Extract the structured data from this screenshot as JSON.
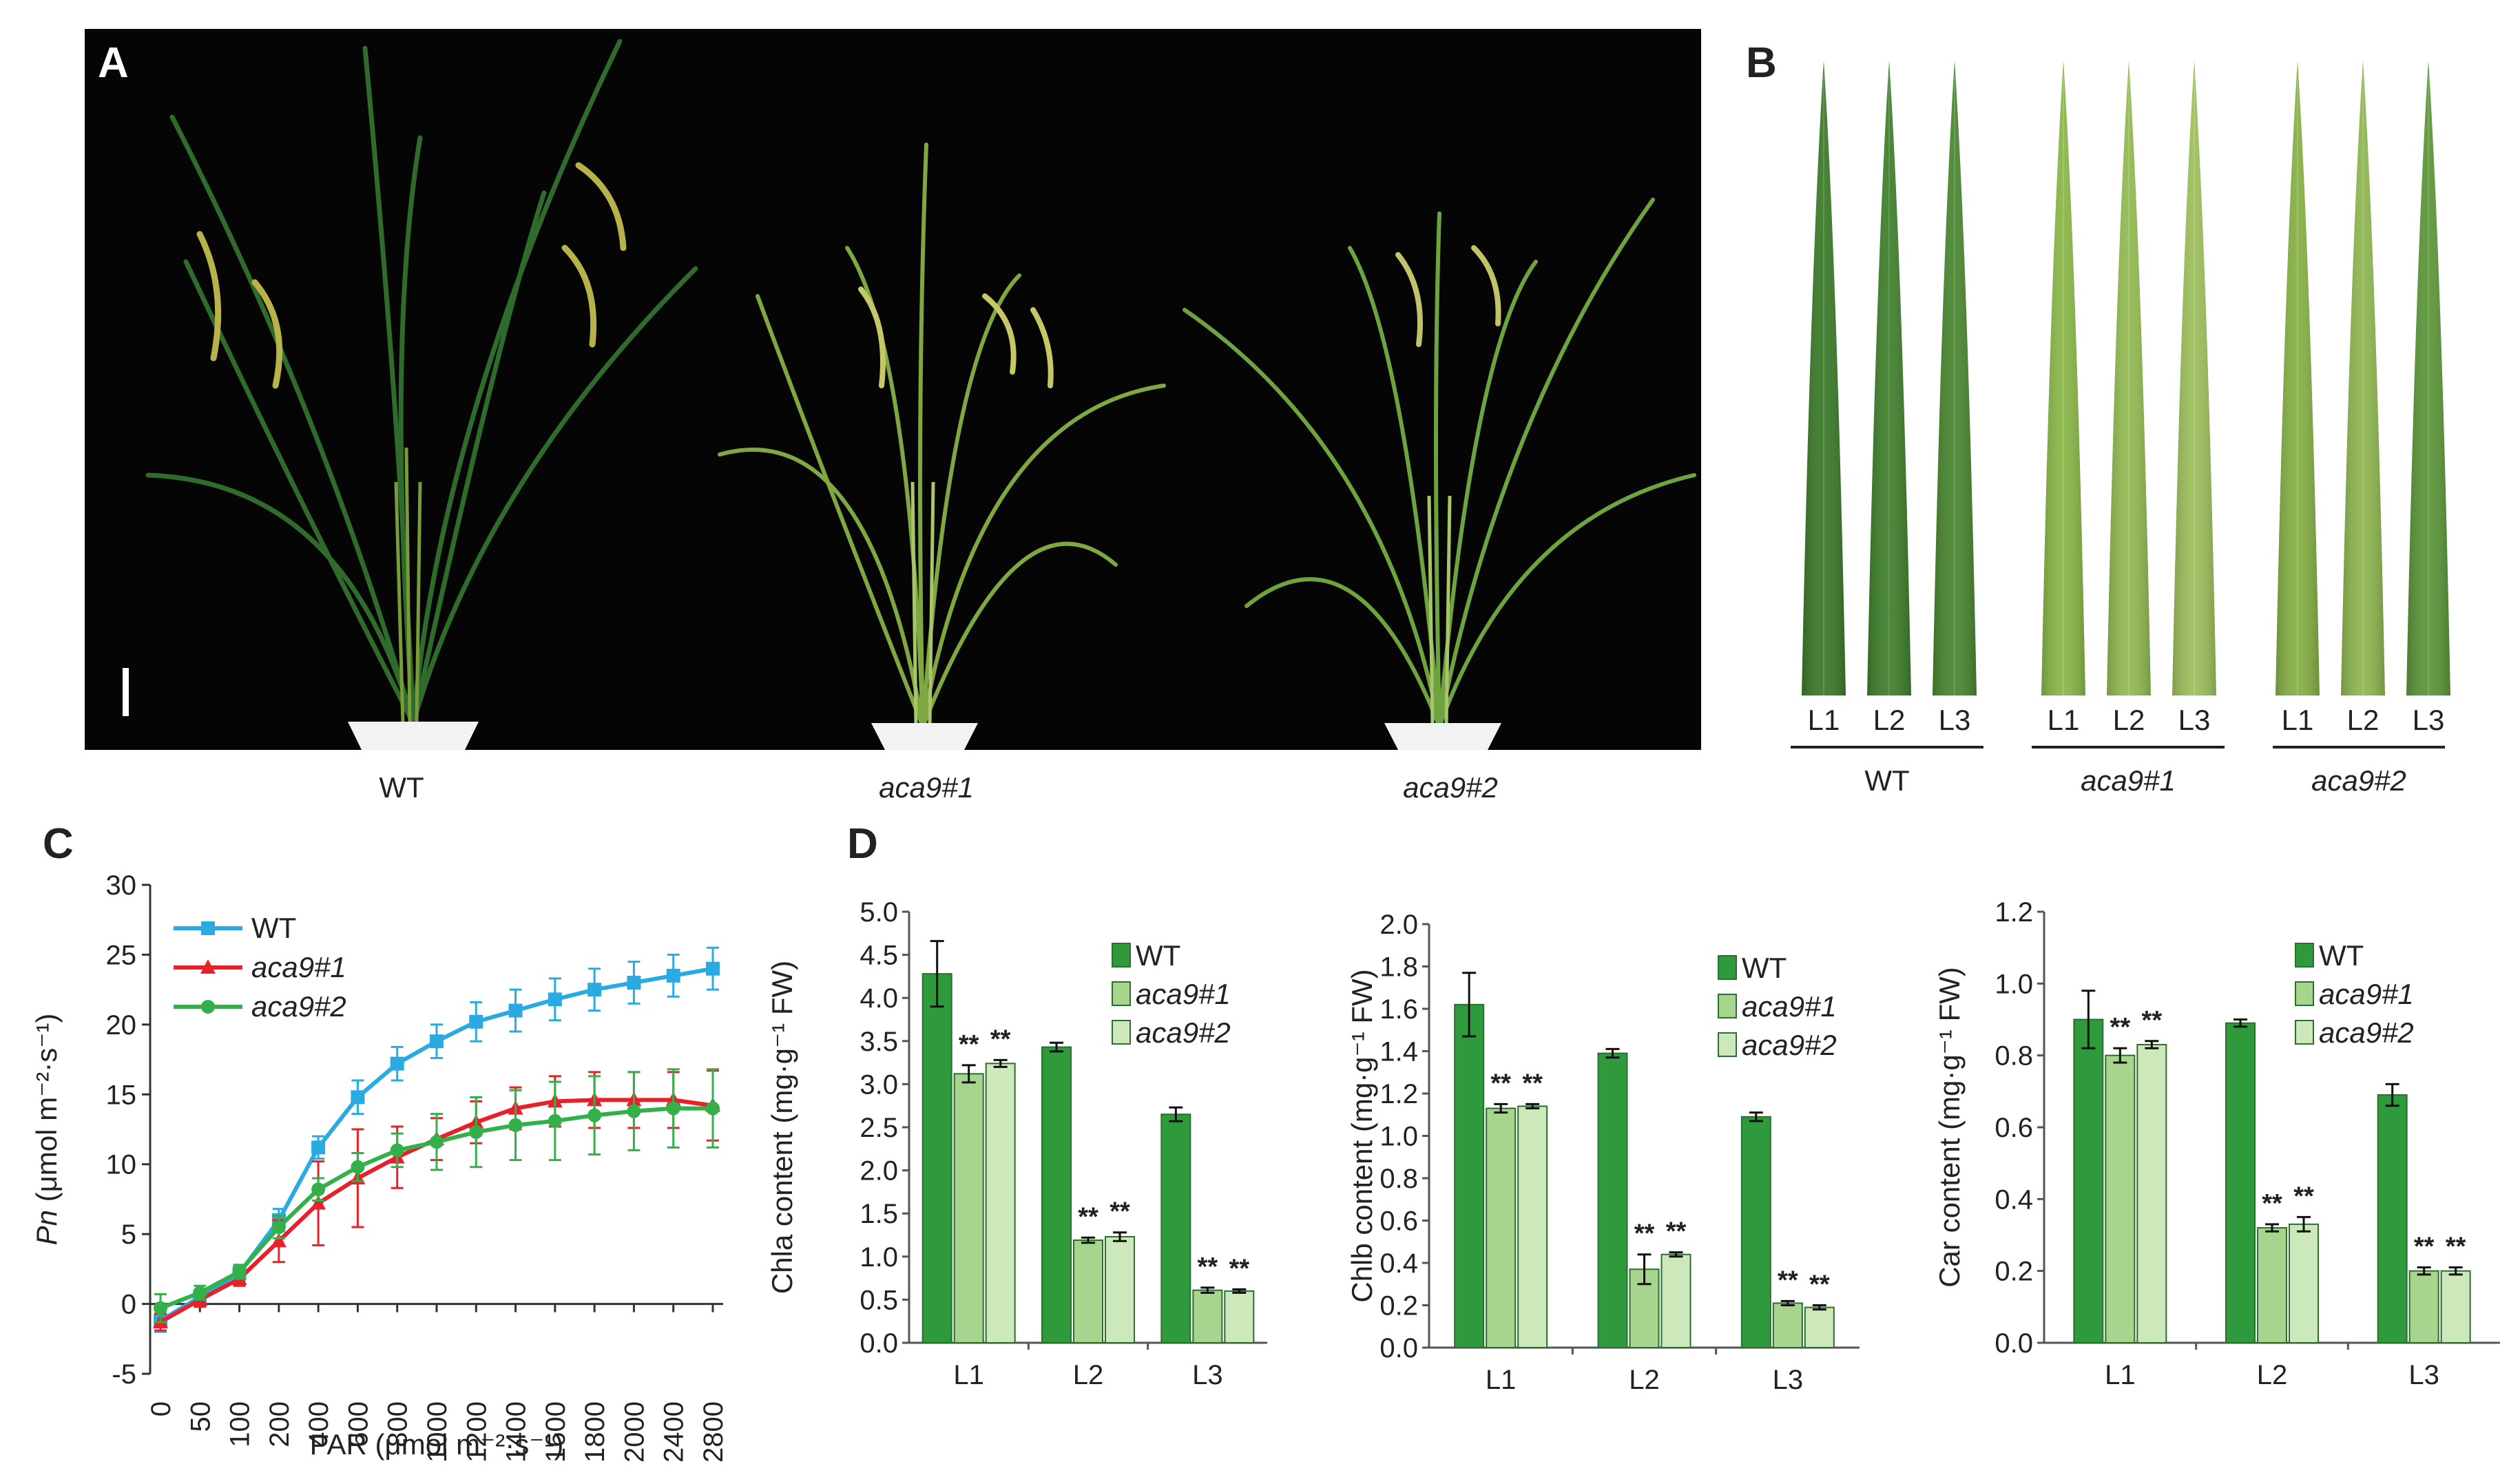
{
  "panels": {
    "A": {
      "letter": "A",
      "plants": [
        "WT",
        "aca9#1",
        "aca9#2"
      ],
      "labels": [
        "WT",
        "aca9#1",
        "aca9#2"
      ]
    },
    "B": {
      "letter": "B",
      "leaf_labels": [
        "L1",
        "L2",
        "L3"
      ],
      "groups": [
        "WT",
        "aca9#1",
        "aca9#2"
      ],
      "colors": {
        "WT": [
          "#3b7a2a",
          "#3f7f2c",
          "#4a8630"
        ],
        "aca9#1": [
          "#8ab648",
          "#93ba52",
          "#9dbf5c"
        ],
        "aca9#2": [
          "#86b045",
          "#8fb650",
          "#5c963a"
        ]
      }
    },
    "C": {
      "letter": "C"
    },
    "D": {
      "letter": "D"
    }
  },
  "chart_data": [
    {
      "id": "C",
      "type": "line",
      "title": "",
      "xlabel": "PAR (μmol m⁻²·s⁻¹)",
      "ylabel_italic": "Pn",
      "ylabel_rest": " (μmol m⁻²·s⁻¹)",
      "x": [
        "0",
        "50",
        "100",
        "200",
        "400",
        "600",
        "800",
        "1000",
        "1200",
        "1400",
        "1600",
        "1800",
        "2000",
        "2400",
        "2800"
      ],
      "ylim": [
        -5,
        30
      ],
      "yticks": [
        "-5",
        "0",
        "5",
        "10",
        "15",
        "20",
        "25",
        "30"
      ],
      "series": [
        {
          "name": "WT",
          "color": "#29abe2",
          "marker": "square",
          "values": [
            -1.2,
            0.5,
            2.2,
            6.0,
            11.2,
            14.8,
            17.2,
            18.8,
            20.2,
            21.0,
            21.8,
            22.5,
            23.0,
            23.5,
            24.0
          ],
          "errors": [
            0.8,
            0.5,
            0.5,
            0.8,
            0.8,
            1.2,
            1.2,
            1.2,
            1.4,
            1.5,
            1.5,
            1.5,
            1.5,
            1.5,
            1.5
          ]
        },
        {
          "name": "aca9#1",
          "color": "#e8202a",
          "marker": "triangle",
          "values": [
            -1.3,
            0.3,
            1.8,
            4.5,
            7.2,
            9.0,
            10.5,
            11.8,
            13.0,
            14.0,
            14.5,
            14.6,
            14.6,
            14.6,
            14.2
          ],
          "errors": [
            0.6,
            0.5,
            0.5,
            1.5,
            3.0,
            3.5,
            2.2,
            1.5,
            1.5,
            1.5,
            1.8,
            2.0,
            2.0,
            2.0,
            2.5
          ]
        },
        {
          "name": "aca9#2",
          "color": "#33b04a",
          "marker": "circle",
          "values": [
            -0.3,
            0.8,
            2.3,
            5.5,
            8.2,
            9.8,
            11.0,
            11.6,
            12.3,
            12.8,
            13.1,
            13.5,
            13.8,
            14.0,
            14.0
          ],
          "errors": [
            1.0,
            0.5,
            0.5,
            0.8,
            0.8,
            1.0,
            1.2,
            2.0,
            2.5,
            2.5,
            2.8,
            2.8,
            2.8,
            2.8,
            2.8
          ]
        }
      ],
      "legend": [
        "WT",
        "aca9#1",
        "aca9#2"
      ]
    },
    {
      "id": "D1",
      "type": "bar",
      "ylabel": "Chla content (mg·g⁻¹ FW)",
      "categories": [
        "L1",
        "L2",
        "L3"
      ],
      "ylim": [
        0,
        5
      ],
      "yticks": [
        "0.0",
        "0.5",
        "1.0",
        "1.5",
        "2.0",
        "2.5",
        "3.0",
        "3.5",
        "4.0",
        "4.5",
        "5.0"
      ],
      "series": [
        {
          "name": "WT",
          "color": "#2e9a3c",
          "values": [
            4.28,
            3.43,
            2.65
          ],
          "errors": [
            0.38,
            0.05,
            0.08
          ]
        },
        {
          "name": "aca9#1",
          "color": "#a8d58e",
          "values": [
            3.12,
            1.19,
            0.61
          ],
          "errors": [
            0.1,
            0.03,
            0.03
          ]
        },
        {
          "name": "aca9#2",
          "color": "#cde8ba",
          "values": [
            3.24,
            1.23,
            0.6
          ],
          "errors": [
            0.04,
            0.05,
            0.02
          ]
        }
      ],
      "sig": [
        "**",
        "**"
      ],
      "legend": [
        "WT",
        "aca9#1",
        "aca9#2"
      ]
    },
    {
      "id": "D2",
      "type": "bar",
      "ylabel": "Chlb content (mg·g⁻¹ FW)",
      "categories": [
        "L1",
        "L2",
        "L3"
      ],
      "ylim": [
        0,
        2
      ],
      "yticks": [
        "0.0",
        "0.2",
        "0.4",
        "0.6",
        "0.8",
        "1.0",
        "1.2",
        "1.4",
        "1.6",
        "1.8",
        "2.0"
      ],
      "series": [
        {
          "name": "WT",
          "color": "#2e9a3c",
          "values": [
            1.62,
            1.39,
            1.09
          ],
          "errors": [
            0.15,
            0.02,
            0.02
          ]
        },
        {
          "name": "aca9#1",
          "color": "#a8d58e",
          "values": [
            1.13,
            0.37,
            0.21
          ],
          "errors": [
            0.02,
            0.07,
            0.01
          ]
        },
        {
          "name": "aca9#2",
          "color": "#cde8ba",
          "values": [
            1.14,
            0.44,
            0.19
          ],
          "errors": [
            0.01,
            0.01,
            0.01
          ]
        }
      ],
      "sig": [
        "**",
        "**"
      ],
      "legend": [
        "WT",
        "aca9#1",
        "aca9#2"
      ]
    },
    {
      "id": "D3",
      "type": "bar",
      "ylabel": "Car content (mg·g⁻¹ FW)",
      "categories": [
        "L1",
        "L2",
        "L3"
      ],
      "ylim": [
        0,
        1.2
      ],
      "yticks": [
        "0.0",
        "0.2",
        "0.4",
        "0.6",
        "0.8",
        "1.0",
        "1.2"
      ],
      "series": [
        {
          "name": "WT",
          "color": "#2e9a3c",
          "values": [
            0.9,
            0.89,
            0.69
          ],
          "errors": [
            0.08,
            0.01,
            0.03
          ]
        },
        {
          "name": "aca9#1",
          "color": "#a8d58e",
          "values": [
            0.8,
            0.32,
            0.2
          ],
          "errors": [
            0.02,
            0.01,
            0.01
          ]
        },
        {
          "name": "aca9#2",
          "color": "#cde8ba",
          "values": [
            0.83,
            0.33,
            0.2
          ],
          "errors": [
            0.01,
            0.02,
            0.01
          ]
        }
      ],
      "sig": [
        "**",
        "**"
      ],
      "legend": [
        "WT",
        "aca9#1",
        "aca9#2"
      ]
    }
  ]
}
